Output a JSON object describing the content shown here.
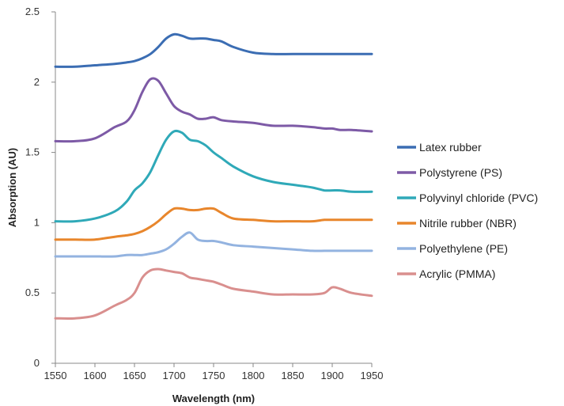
{
  "chart_data": {
    "type": "line",
    "title": "",
    "xlabel": "Wavelength (nm)",
    "ylabel": "Absorption (AU)",
    "xlim": [
      1550,
      1950
    ],
    "ylim": [
      0,
      2.5
    ],
    "x_ticks": [
      1550,
      1600,
      1650,
      1700,
      1750,
      1800,
      1850,
      1900,
      1950
    ],
    "y_ticks": [
      0,
      0.5,
      1,
      1.5,
      2,
      2.5
    ],
    "y_tick_labels": [
      "0",
      "0.5",
      "1",
      "1.5",
      "2",
      "2.5"
    ],
    "grid": false,
    "legend_position": "right",
    "x": [
      1550,
      1575,
      1600,
      1625,
      1640,
      1650,
      1660,
      1670,
      1680,
      1690,
      1700,
      1710,
      1720,
      1730,
      1740,
      1750,
      1760,
      1775,
      1800,
      1825,
      1850,
      1875,
      1890,
      1900,
      1910,
      1925,
      1950
    ],
    "series": [
      {
        "name": "Latex rubber",
        "color": "#3b6db3",
        "values": [
          2.11,
          2.11,
          2.12,
          2.13,
          2.14,
          2.15,
          2.17,
          2.2,
          2.25,
          2.31,
          2.34,
          2.33,
          2.31,
          2.31,
          2.31,
          2.3,
          2.29,
          2.25,
          2.21,
          2.2,
          2.2,
          2.2,
          2.2,
          2.2,
          2.2,
          2.2,
          2.2
        ]
      },
      {
        "name": "Polystyrene (PS)",
        "color": "#7d5aa6",
        "values": [
          1.58,
          1.58,
          1.6,
          1.68,
          1.72,
          1.8,
          1.93,
          2.02,
          2.01,
          1.92,
          1.83,
          1.79,
          1.77,
          1.74,
          1.74,
          1.75,
          1.73,
          1.72,
          1.71,
          1.69,
          1.69,
          1.68,
          1.67,
          1.67,
          1.66,
          1.66,
          1.65
        ]
      },
      {
        "name": "Polyvinyl chloride (PVC)",
        "color": "#2fa9b8",
        "values": [
          1.01,
          1.01,
          1.03,
          1.08,
          1.15,
          1.23,
          1.28,
          1.36,
          1.48,
          1.59,
          1.65,
          1.64,
          1.59,
          1.58,
          1.55,
          1.5,
          1.46,
          1.4,
          1.33,
          1.29,
          1.27,
          1.25,
          1.23,
          1.23,
          1.23,
          1.22,
          1.22
        ]
      },
      {
        "name": "Nitrile rubber (NBR)",
        "color": "#e8862c",
        "values": [
          0.88,
          0.88,
          0.88,
          0.9,
          0.91,
          0.92,
          0.94,
          0.97,
          1.01,
          1.06,
          1.1,
          1.1,
          1.09,
          1.09,
          1.1,
          1.1,
          1.07,
          1.03,
          1.02,
          1.01,
          1.01,
          1.01,
          1.02,
          1.02,
          1.02,
          1.02,
          1.02
        ]
      },
      {
        "name": "Polyethylene (PE)",
        "color": "#93b3e0",
        "values": [
          0.76,
          0.76,
          0.76,
          0.76,
          0.77,
          0.77,
          0.77,
          0.78,
          0.79,
          0.81,
          0.85,
          0.9,
          0.93,
          0.88,
          0.87,
          0.87,
          0.86,
          0.84,
          0.83,
          0.82,
          0.81,
          0.8,
          0.8,
          0.8,
          0.8,
          0.8,
          0.8
        ]
      },
      {
        "name": "Acrylic (PMMA)",
        "color": "#d98f8e",
        "values": [
          0.32,
          0.32,
          0.34,
          0.41,
          0.45,
          0.5,
          0.61,
          0.66,
          0.67,
          0.66,
          0.65,
          0.64,
          0.61,
          0.6,
          0.59,
          0.58,
          0.56,
          0.53,
          0.51,
          0.49,
          0.49,
          0.49,
          0.5,
          0.54,
          0.53,
          0.5,
          0.48
        ]
      }
    ]
  }
}
